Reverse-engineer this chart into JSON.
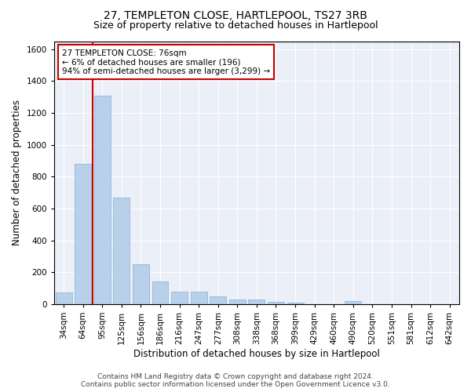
{
  "title": "27, TEMPLETON CLOSE, HARTLEPOOL, TS27 3RB",
  "subtitle": "Size of property relative to detached houses in Hartlepool",
  "xlabel": "Distribution of detached houses by size in Hartlepool",
  "ylabel": "Number of detached properties",
  "categories": [
    "34sqm",
    "64sqm",
    "95sqm",
    "125sqm",
    "156sqm",
    "186sqm",
    "216sqm",
    "247sqm",
    "277sqm",
    "308sqm",
    "338sqm",
    "368sqm",
    "399sqm",
    "429sqm",
    "460sqm",
    "490sqm",
    "520sqm",
    "551sqm",
    "581sqm",
    "612sqm",
    "642sqm"
  ],
  "values": [
    75,
    880,
    1310,
    670,
    250,
    140,
    80,
    80,
    50,
    30,
    30,
    15,
    10,
    0,
    0,
    20,
    0,
    0,
    0,
    0,
    0
  ],
  "bar_color": "#b8d0ea",
  "bar_edge_color": "#8ab0d0",
  "annotation_line1": "27 TEMPLETON CLOSE: 76sqm",
  "annotation_line2": "← 6% of detached houses are smaller (196)",
  "annotation_line3": "94% of semi-detached houses are larger (3,299) →",
  "annotation_box_facecolor": "#ffffff",
  "annotation_box_edgecolor": "#cc0000",
  "vline_color": "#cc0000",
  "vline_x_index": 1.5,
  "ylim": [
    0,
    1650
  ],
  "yticks": [
    0,
    200,
    400,
    600,
    800,
    1000,
    1200,
    1400,
    1600
  ],
  "footer_line1": "Contains HM Land Registry data © Crown copyright and database right 2024.",
  "footer_line2": "Contains public sector information licensed under the Open Government Licence v3.0.",
  "background_color": "#eaeff8",
  "grid_color": "#ffffff",
  "title_fontsize": 10,
  "subtitle_fontsize": 9,
  "xlabel_fontsize": 8.5,
  "ylabel_fontsize": 8.5,
  "tick_fontsize": 7.5,
  "annotation_fontsize": 7.5,
  "footer_fontsize": 6.5
}
